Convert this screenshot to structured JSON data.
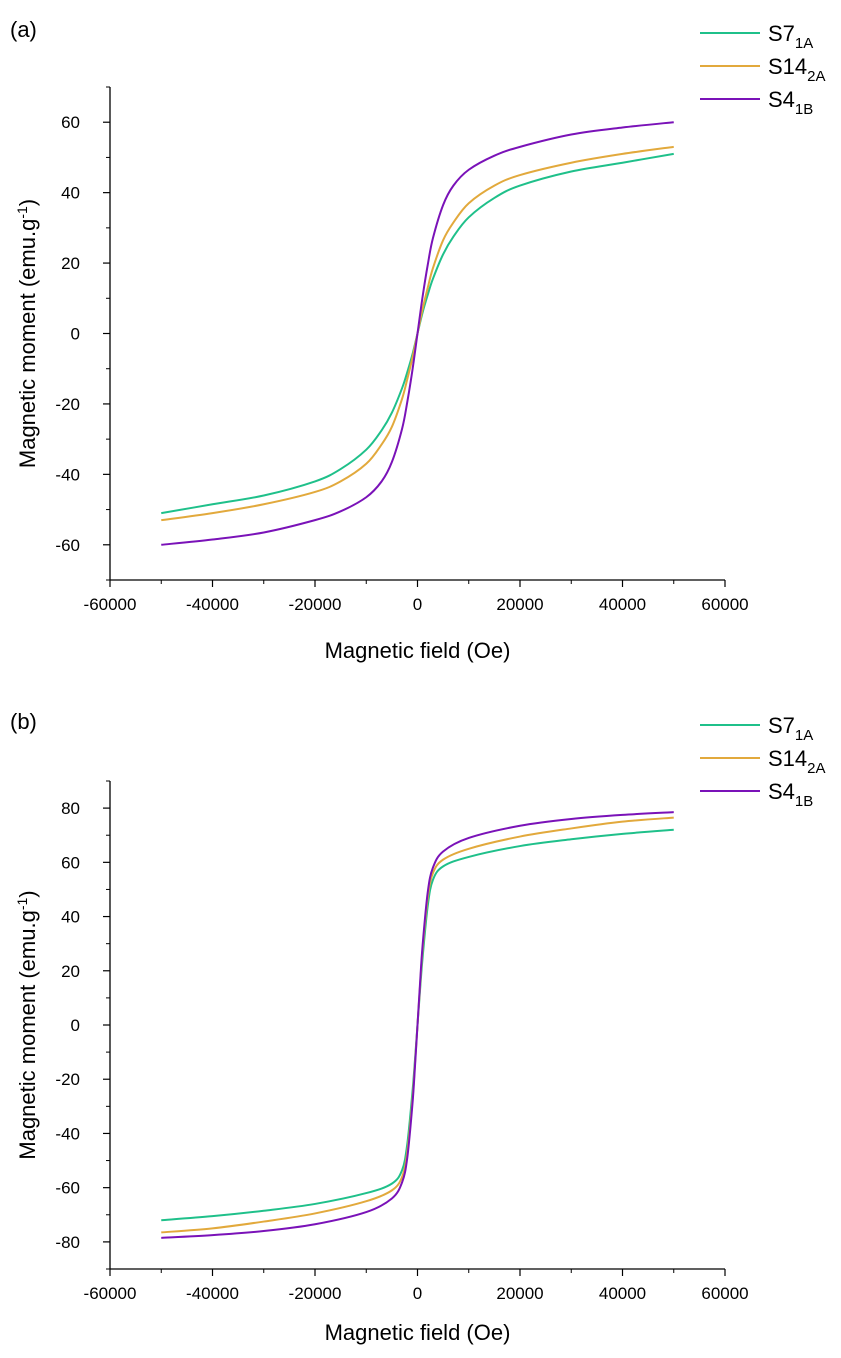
{
  "chart_data": [
    {
      "panel_label": "(a)",
      "type": "line",
      "xlabel": "Magnetic field (Oe)",
      "ylabel": {
        "main": "Magnetic moment (emu.g",
        "sup": "-1",
        "end": ")"
      },
      "xlim": [
        -60000,
        60000
      ],
      "ylim": [
        -70,
        70
      ],
      "xticks": [
        -60000,
        -40000,
        -20000,
        0,
        20000,
        40000,
        60000
      ],
      "xtick_labels": [
        "-60000",
        "-40000",
        "-20000",
        "0",
        "20000",
        "40000",
        "60000"
      ],
      "yticks": [
        -60,
        -40,
        -20,
        0,
        20,
        40,
        60
      ],
      "ytick_labels": [
        "-60",
        "-40",
        "-20",
        "0",
        "20",
        "40",
        "60"
      ],
      "legend_position": "top-right",
      "series": [
        {
          "name": "S7",
          "sub": "1A",
          "color": "#1fc08a",
          "x": [
            -50000,
            -40000,
            -30000,
            -20000,
            -15000,
            -10000,
            -7000,
            -5000,
            -3000,
            -2000,
            -1000,
            0,
            1000,
            2000,
            3000,
            5000,
            7000,
            10000,
            15000,
            20000,
            30000,
            40000,
            50000
          ],
          "y": [
            -51,
            -48.5,
            -46,
            -42,
            -38.5,
            -33,
            -27.5,
            -22.5,
            -15.5,
            -11,
            -6,
            0,
            6,
            11,
            15.5,
            22.5,
            27.5,
            33,
            38.5,
            42,
            46,
            48.5,
            51
          ]
        },
        {
          "name": "S14",
          "sub": "2A",
          "color": "#e2a93c",
          "x": [
            -50000,
            -40000,
            -30000,
            -20000,
            -15000,
            -10000,
            -7000,
            -5000,
            -3000,
            -2000,
            -1000,
            0,
            1000,
            2000,
            3000,
            5000,
            7000,
            10000,
            15000,
            20000,
            30000,
            40000,
            50000
          ],
          "y": [
            -53,
            -51,
            -48.5,
            -45,
            -42,
            -37,
            -31.5,
            -26.5,
            -18.5,
            -13,
            -7,
            0,
            7,
            13,
            18.5,
            26.5,
            31.5,
            37,
            42,
            45,
            48.5,
            51,
            53
          ]
        },
        {
          "name": "S4",
          "sub": "1B",
          "color": "#7a12b8",
          "x": [
            -50000,
            -40000,
            -30000,
            -20000,
            -15000,
            -10000,
            -7000,
            -5000,
            -3000,
            -2000,
            -1000,
            0,
            1000,
            2000,
            3000,
            5000,
            7000,
            10000,
            15000,
            20000,
            30000,
            40000,
            50000
          ],
          "y": [
            -60,
            -58.5,
            -56.5,
            -53,
            -50.5,
            -46.5,
            -42,
            -36.5,
            -27,
            -19.5,
            -10.5,
            0,
            10.5,
            19.5,
            27,
            36.5,
            42,
            46.5,
            50.5,
            53,
            56.5,
            58.5,
            60
          ]
        }
      ]
    },
    {
      "panel_label": "(b)",
      "type": "line",
      "xlabel": "Magnetic field (Oe)",
      "ylabel": {
        "main": "Magnetic moment (emu.g",
        "sup": "-1",
        "end": ")"
      },
      "xlim": [
        -60000,
        60000
      ],
      "ylim": [
        -90,
        90
      ],
      "xticks": [
        -60000,
        -40000,
        -20000,
        0,
        20000,
        40000,
        60000
      ],
      "xtick_labels": [
        "-60000",
        "-40000",
        "-20000",
        "0",
        "20000",
        "40000",
        "60000"
      ],
      "yticks": [
        -80,
        -60,
        -40,
        -20,
        0,
        20,
        40,
        60,
        80
      ],
      "ytick_labels": [
        "-80",
        "-60",
        "-40",
        "-20",
        "0",
        "20",
        "40",
        "60",
        "80"
      ],
      "legend_position": "top-right",
      "series": [
        {
          "name": "S7",
          "sub": "1A",
          "color": "#1fc08a",
          "x": [
            -50000,
            -40000,
            -30000,
            -20000,
            -10000,
            -5000,
            -3000,
            -2000,
            -1000,
            -500,
            0,
            500,
            1000,
            2000,
            3000,
            5000,
            10000,
            20000,
            30000,
            40000,
            50000
          ],
          "y": [
            -72,
            -70.5,
            -68.5,
            -66,
            -62,
            -58.5,
            -53.5,
            -44,
            -25,
            -13,
            0,
            13,
            25,
            44,
            53.5,
            58.5,
            62,
            66,
            68.5,
            70.5,
            72
          ]
        },
        {
          "name": "S14",
          "sub": "2A",
          "color": "#e2a93c",
          "x": [
            -50000,
            -40000,
            -30000,
            -20000,
            -10000,
            -5000,
            -3000,
            -2000,
            -1000,
            -500,
            0,
            500,
            1000,
            2000,
            3000,
            5000,
            10000,
            20000,
            30000,
            40000,
            50000
          ],
          "y": [
            -76.5,
            -75,
            -72.5,
            -69.5,
            -65,
            -61,
            -56,
            -47,
            -28,
            -14.5,
            0,
            14.5,
            28,
            47,
            56,
            61,
            65,
            69.5,
            72.5,
            75,
            76.5
          ]
        },
        {
          "name": "S4",
          "sub": "1B",
          "color": "#7a12b8",
          "x": [
            -50000,
            -40000,
            -30000,
            -20000,
            -10000,
            -5000,
            -3000,
            -2000,
            -1000,
            -500,
            0,
            500,
            1000,
            2000,
            3000,
            5000,
            10000,
            20000,
            30000,
            40000,
            50000
          ],
          "y": [
            -78.5,
            -77.5,
            -76,
            -73.5,
            -69,
            -64,
            -58,
            -49,
            -29.5,
            -15.5,
            0,
            15.5,
            29.5,
            49,
            58,
            64,
            69,
            73.5,
            76,
            77.5,
            78.5
          ]
        }
      ]
    }
  ]
}
